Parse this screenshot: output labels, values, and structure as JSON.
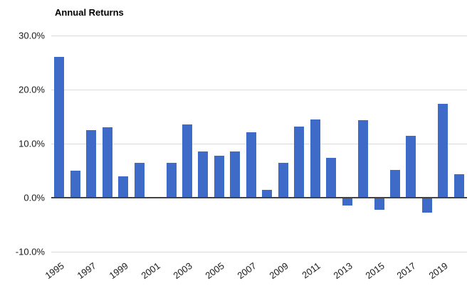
{
  "chart_data": {
    "type": "bar",
    "title": "Annual Returns",
    "categories": [
      1995,
      1996,
      1997,
      1998,
      1999,
      2000,
      2001,
      2002,
      2003,
      2004,
      2005,
      2006,
      2007,
      2008,
      2009,
      2010,
      2011,
      2012,
      2013,
      2014,
      2015,
      2016,
      2017,
      2018,
      2019,
      2020
    ],
    "values": [
      26.0,
      5.0,
      12.5,
      13.0,
      4.0,
      6.5,
      0.0,
      6.5,
      13.6,
      8.5,
      7.8,
      8.6,
      12.1,
      1.4,
      6.4,
      13.2,
      14.5,
      7.4,
      -1.5,
      14.4,
      -2.2,
      5.1,
      11.5,
      -2.8,
      17.4,
      4.3
    ],
    "xlabel": "",
    "ylabel": "",
    "ylim": [
      -10,
      30
    ],
    "y_ticks": [
      {
        "value": 30,
        "label": "30.0%"
      },
      {
        "value": 20,
        "label": "20.0%"
      },
      {
        "value": 10,
        "label": "10.0%"
      },
      {
        "value": 0,
        "label": "0.0%"
      },
      {
        "value": -10,
        "label": "-10.0%"
      }
    ],
    "x_tick_years": [
      1995,
      1997,
      1999,
      2001,
      2003,
      2005,
      2007,
      2009,
      2011,
      2013,
      2015,
      2017,
      2019
    ],
    "grid": true,
    "legend": "none",
    "bar_color": "#3D6BC7",
    "gridline_color": "#DCDCDC",
    "axis_line_color": "#424242",
    "text_color": "#1a1a1a"
  }
}
